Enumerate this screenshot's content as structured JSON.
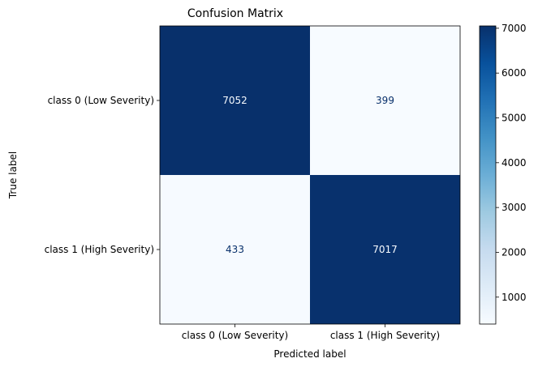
{
  "chart_data": {
    "type": "heatmap",
    "title": "Confusion Matrix",
    "xlabel": "Predicted label",
    "ylabel": "True label",
    "x_categories": [
      "class 0 (Low Severity)",
      "class 1 (High Severity)"
    ],
    "y_categories": [
      "class 0 (Low Severity)",
      "class 1 (High Severity)"
    ],
    "values": [
      [
        7052,
        399
      ],
      [
        433,
        7017
      ]
    ],
    "colormap": "Blues",
    "colorbar": {
      "range": [
        399,
        7052
      ],
      "ticks": [
        1000,
        2000,
        3000,
        4000,
        5000,
        6000,
        7000
      ],
      "tick_labels": [
        "1000",
        "2000",
        "3000",
        "4000",
        "5000",
        "6000",
        "7000"
      ]
    },
    "grid": false
  },
  "colors": {
    "dark_cell": "#08306b",
    "light_cell": "#f7fbff",
    "light_text": "#f7fbff",
    "dark_text": "#08306b",
    "axis": "#000000"
  }
}
